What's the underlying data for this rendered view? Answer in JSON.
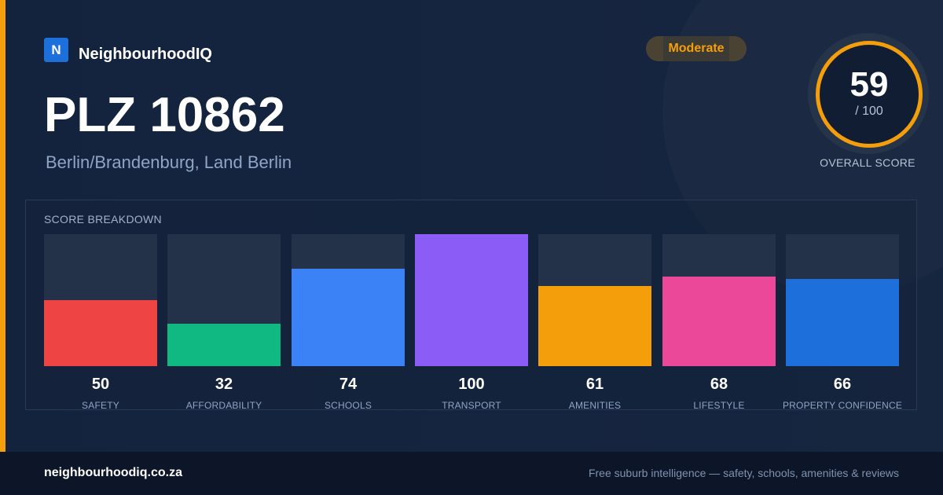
{
  "brand": {
    "logo_letter": "N",
    "name": "NeighbourhoodIQ"
  },
  "header": {
    "title": "PLZ 10862",
    "subtitle": "Berlin/Brandenburg, Land Berlin",
    "badge": "Moderate"
  },
  "overall": {
    "score": "59",
    "max": "/ 100",
    "caption": "OVERALL SCORE"
  },
  "breakdown": {
    "title": "SCORE BREAKDOWN",
    "max": 100,
    "items": [
      {
        "label": "SAFETY",
        "value": 50,
        "color": "#ef4444"
      },
      {
        "label": "AFFORDABILITY",
        "value": 32,
        "color": "#10b981"
      },
      {
        "label": "SCHOOLS",
        "value": 74,
        "color": "#3b82f6"
      },
      {
        "label": "TRANSPORT",
        "value": 100,
        "color": "#8b5cf6"
      },
      {
        "label": "AMENITIES",
        "value": 61,
        "color": "#f59e0b"
      },
      {
        "label": "LIFESTYLE",
        "value": 68,
        "color": "#ec4899"
      },
      {
        "label": "PROPERTY CONFIDENCE",
        "value": 66,
        "color": "#1d6fdc"
      }
    ]
  },
  "colors": {
    "accent": "#f59e0b",
    "background": "#14223c",
    "footer": "#0c1628"
  },
  "footer": {
    "domain": "neighbourhoodiq.co.za",
    "tagline": "Free suburb intelligence — safety, schools, amenities & reviews"
  }
}
